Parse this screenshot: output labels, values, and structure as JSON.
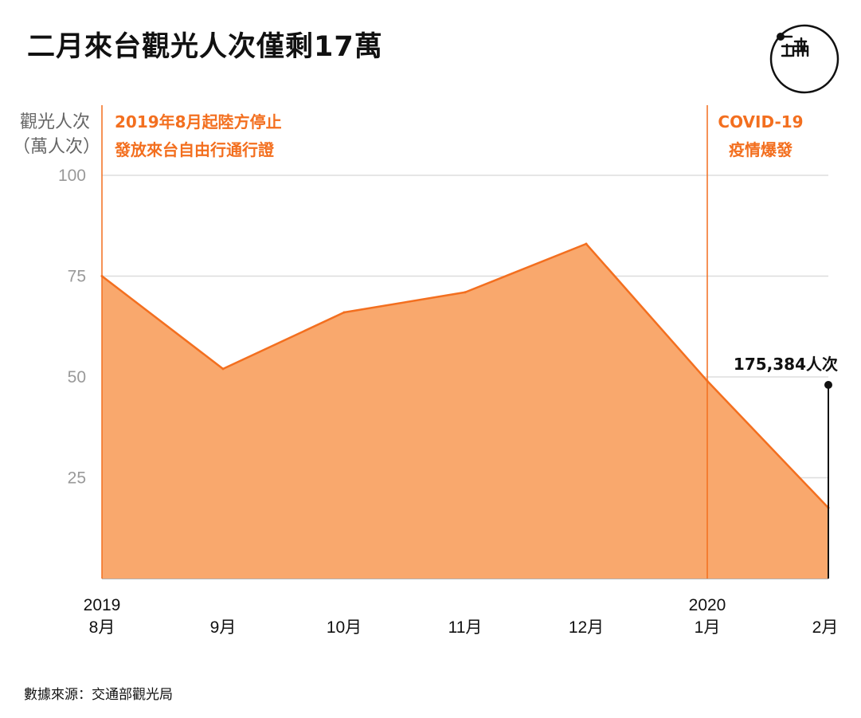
{
  "title": "二月來台觀光人次僅剩17萬",
  "ylabel_line1": "觀光人次",
  "ylabel_line2": "（萬人次）",
  "source": "數據來源：交通部觀光局",
  "logo_text": "端",
  "colors": {
    "accent": "#f36f1f",
    "fill": "#f9a86d",
    "grid": "#dddddd",
    "axis": "#999999"
  },
  "chart_data": {
    "type": "area",
    "categories": [
      "8月",
      "9月",
      "10月",
      "11月",
      "12月",
      "1月",
      "2月"
    ],
    "category_years": [
      "2019",
      "",
      "",
      "",
      "",
      "2020",
      ""
    ],
    "values": [
      75,
      52,
      66,
      71,
      83,
      49,
      17.5384
    ],
    "ylim": [
      0,
      100
    ],
    "yticks": [
      25,
      50,
      75,
      100
    ],
    "grid": true,
    "annotations": [
      {
        "category_index": 0,
        "lines": [
          "2019年8月起陸方停止",
          "發放來台自由行通行證"
        ]
      },
      {
        "category_index": 5,
        "lines": [
          "COVID-19",
          "疫情爆發"
        ]
      }
    ],
    "end_label": "175,384人次"
  }
}
